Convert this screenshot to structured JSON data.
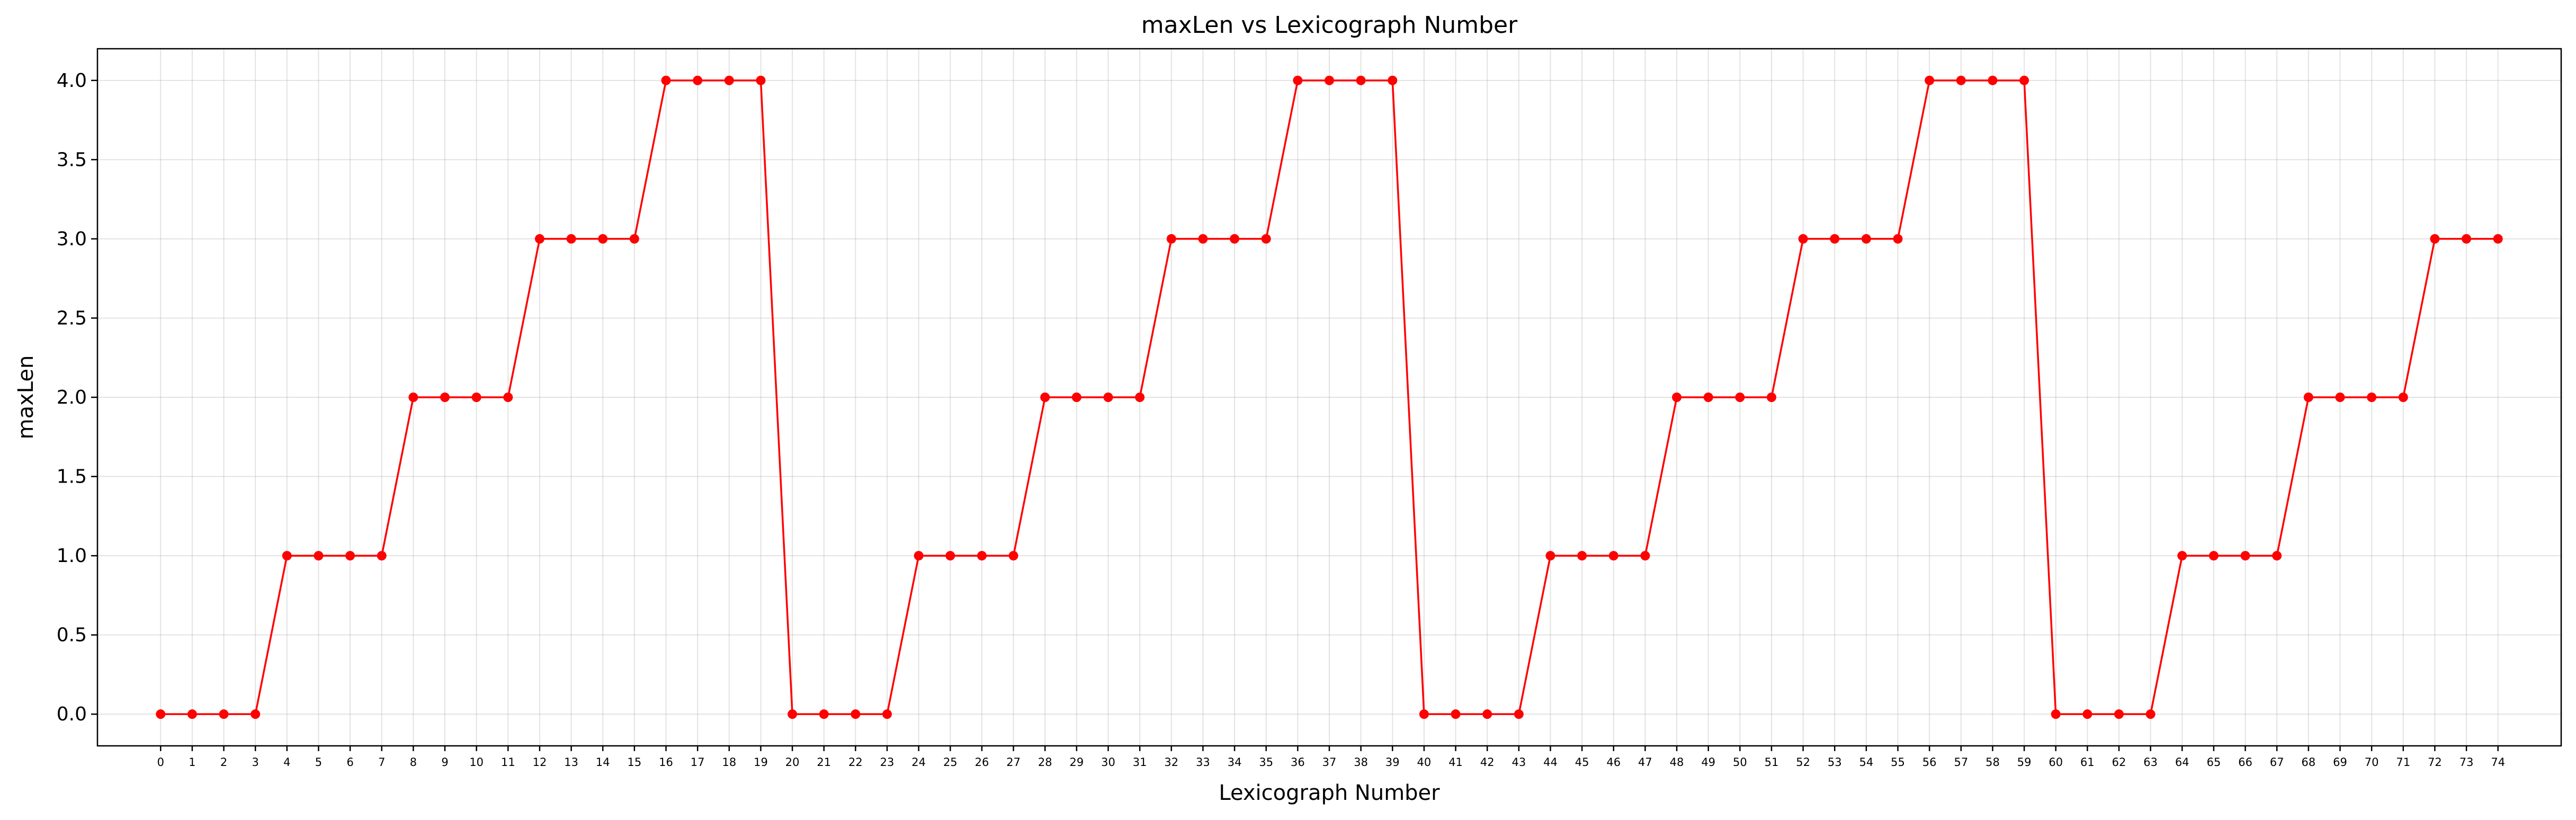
{
  "chart_data": {
    "type": "line",
    "title": "maxLen vs Lexicograph Number",
    "xlabel": "Lexicograph Number",
    "ylabel": "maxLen",
    "ylim": [
      -0.2,
      4.2
    ],
    "xlim": [
      -2,
      76
    ],
    "yticks": [
      "0.0",
      "0.5",
      "1.0",
      "1.5",
      "2.0",
      "2.5",
      "3.0",
      "3.5",
      "4.0"
    ],
    "grid": true,
    "color": "#ff0000",
    "x": [
      0,
      1,
      2,
      3,
      4,
      5,
      6,
      7,
      8,
      9,
      10,
      11,
      12,
      13,
      14,
      15,
      16,
      17,
      18,
      19,
      20,
      21,
      22,
      23,
      24,
      25,
      26,
      27,
      28,
      29,
      30,
      31,
      32,
      33,
      34,
      35,
      36,
      37,
      38,
      39,
      40,
      41,
      42,
      43,
      44,
      45,
      46,
      47,
      48,
      49,
      50,
      51,
      52,
      53,
      54,
      55,
      56,
      57,
      58,
      59,
      60,
      61,
      62,
      63,
      64,
      65,
      66,
      67,
      68,
      69,
      70,
      71,
      72,
      73,
      74
    ],
    "series": [
      {
        "values": [
          0,
          0,
          0,
          0,
          1,
          1,
          1,
          1,
          2,
          2,
          2,
          2,
          3,
          3,
          3,
          3,
          4,
          4,
          4,
          4,
          0,
          0,
          0,
          0,
          1,
          1,
          1,
          1,
          2,
          2,
          2,
          2,
          3,
          3,
          3,
          3,
          4,
          4,
          4,
          4,
          0,
          0,
          0,
          0,
          1,
          1,
          1,
          1,
          2,
          2,
          2,
          2,
          3,
          3,
          3,
          3,
          4,
          4,
          4,
          4,
          0,
          0,
          0,
          0,
          1,
          1,
          1,
          1,
          2,
          2,
          2,
          2,
          3,
          3,
          3
        ]
      }
    ]
  }
}
